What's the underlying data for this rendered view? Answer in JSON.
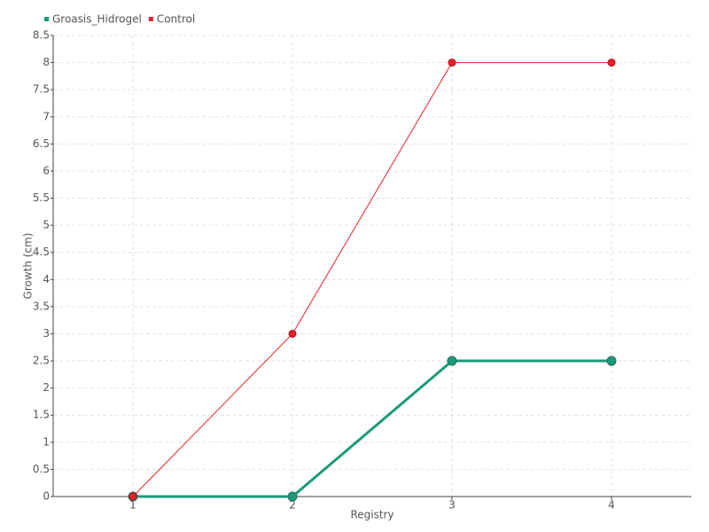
{
  "chart_data": {
    "type": "line",
    "y_label": "Growth (cm)",
    "x_label": "Registry",
    "categories": [
      "1",
      "2",
      "3",
      "4"
    ],
    "series": [
      {
        "name": "Groasis_Hidrogel",
        "color": "#1a9a7a",
        "values": [
          0,
          0,
          2.5,
          2.5
        ]
      },
      {
        "name": "Control",
        "color": "#e8202a",
        "values": [
          0,
          3,
          8,
          8
        ]
      }
    ],
    "ylim": [
      0,
      8.5
    ],
    "yticks": [
      0,
      0.5,
      1,
      1.5,
      2,
      2.5,
      3,
      3.5,
      4,
      4.5,
      5,
      5.5,
      6,
      6.5,
      7,
      7.5,
      8,
      8.5
    ],
    "grid": true,
    "legend": "top-left"
  }
}
